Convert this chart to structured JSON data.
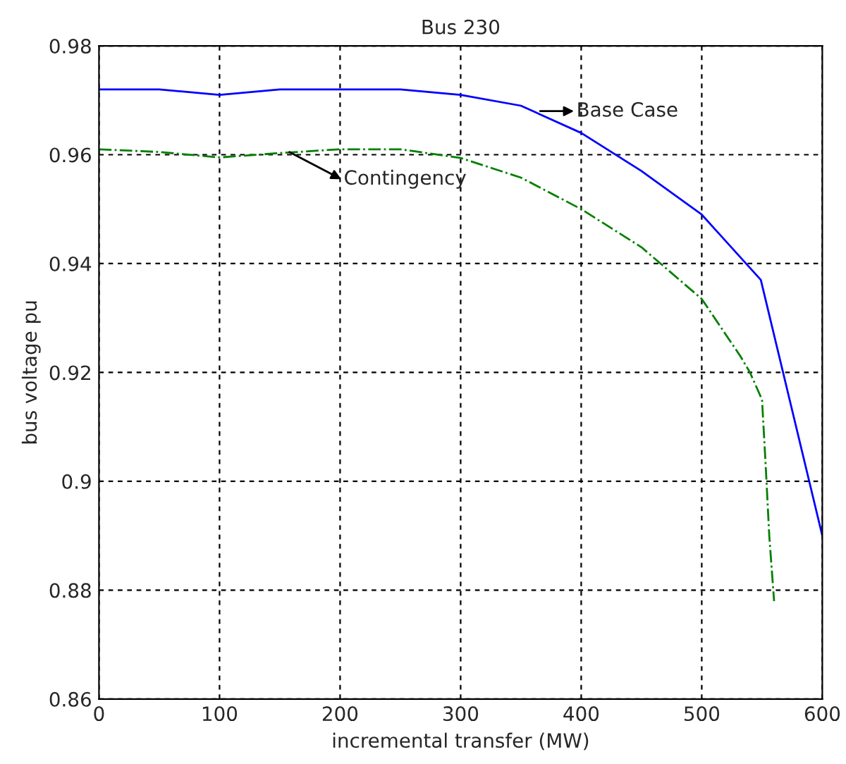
{
  "chart_data": {
    "type": "line",
    "title": "Bus 230",
    "xlabel": "incremental transfer (MW)",
    "ylabel": "bus voltage pu",
    "xlim": [
      0,
      600
    ],
    "xticks": [
      0,
      100,
      200,
      300,
      400,
      500,
      600
    ],
    "ylim": [
      0.86,
      0.98
    ],
    "yticks": [
      0.86,
      0.88,
      0.9,
      0.92,
      0.94,
      0.96,
      0.98
    ],
    "grid": true,
    "legend": false,
    "series": [
      {
        "color": "#0000ff",
        "line_style": "solid",
        "x": [
          0,
          50,
          100,
          150,
          200,
          250,
          300,
          350,
          400,
          450,
          500,
          549,
          600
        ],
        "values": [
          0.972,
          0.972,
          0.971,
          0.972,
          0.972,
          0.972,
          0.971,
          0.969,
          0.964,
          0.957,
          0.949,
          0.937,
          0.89
        ]
      },
      {
        "color": "#008000",
        "line_style": "dashdot",
        "x": [
          0,
          50,
          100,
          150,
          200,
          250,
          300,
          350,
          400,
          450,
          500,
          532,
          540,
          550,
          553,
          556,
          560
        ],
        "values": [
          0.961,
          0.9605,
          0.9595,
          0.9603,
          0.961,
          0.961,
          0.9594,
          0.9558,
          0.95,
          0.943,
          0.9335,
          0.923,
          0.92,
          0.915,
          0.903,
          0.89,
          0.878
        ]
      }
    ],
    "annotations": [
      {
        "text": "Base Case",
        "x": 366,
        "y": 0.968
      },
      {
        "text": "Contingency",
        "x": 158,
        "y": 0.9605
      }
    ]
  }
}
